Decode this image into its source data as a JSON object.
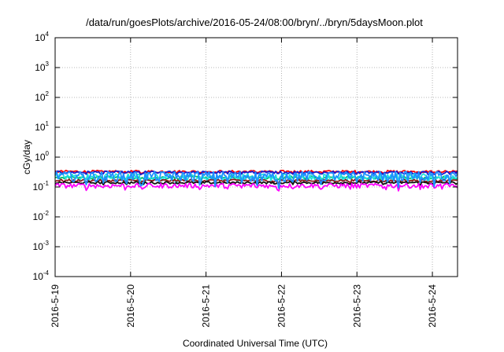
{
  "chart_data": {
    "type": "line",
    "title": "/data/run/goesPlots/archive/2016-05-24/08:00/bryn/../bryn/5daysMoon.plot",
    "xlabel": "Coordinated Universal Time (UTC)",
    "ylabel": "cGy/day",
    "y_scale": "log",
    "ylim": [
      0.0001,
      10000
    ],
    "y_ticks": [
      {
        "base": "10",
        "exp": "-4",
        "value": 0.0001
      },
      {
        "base": "10",
        "exp": "-3",
        "value": 0.001
      },
      {
        "base": "10",
        "exp": "-2",
        "value": 0.01
      },
      {
        "base": "10",
        "exp": "-1",
        "value": 0.1
      },
      {
        "base": "10",
        "exp": "0",
        "value": 1
      },
      {
        "base": "10",
        "exp": "1",
        "value": 10
      },
      {
        "base": "10",
        "exp": "2",
        "value": 100
      },
      {
        "base": "10",
        "exp": "3",
        "value": 1000
      },
      {
        "base": "10",
        "exp": "4",
        "value": 10000
      }
    ],
    "x_ticks": [
      "2016-5-19",
      "2016-5-20",
      "2016-5-21",
      "2016-5-22",
      "2016-5-23",
      "2016-5-24"
    ],
    "xlim": [
      "2016-05-19 00:00",
      "2016-05-24 08:00"
    ],
    "grid": true,
    "legend": "none",
    "series": [
      {
        "color": "#ff0000",
        "level": 0.33,
        "spread": 0.03
      },
      {
        "color": "#1a1acc",
        "level": 0.31,
        "spread": 0.03
      },
      {
        "color": "#00c070",
        "level": 0.21,
        "spread": 0.025
      },
      {
        "color": "#20e0e0",
        "level": 0.22,
        "spread": 0.06
      },
      {
        "color": "#8b1a1a",
        "level": 0.165,
        "spread": 0.015
      },
      {
        "color": "#111111",
        "level": 0.14,
        "spread": 0.012
      },
      {
        "color": "#ff00ff",
        "level": 0.112,
        "spread": 0.02
      },
      {
        "color": "#1e90ff",
        "level": 0.24,
        "spread": 0.09
      }
    ]
  }
}
